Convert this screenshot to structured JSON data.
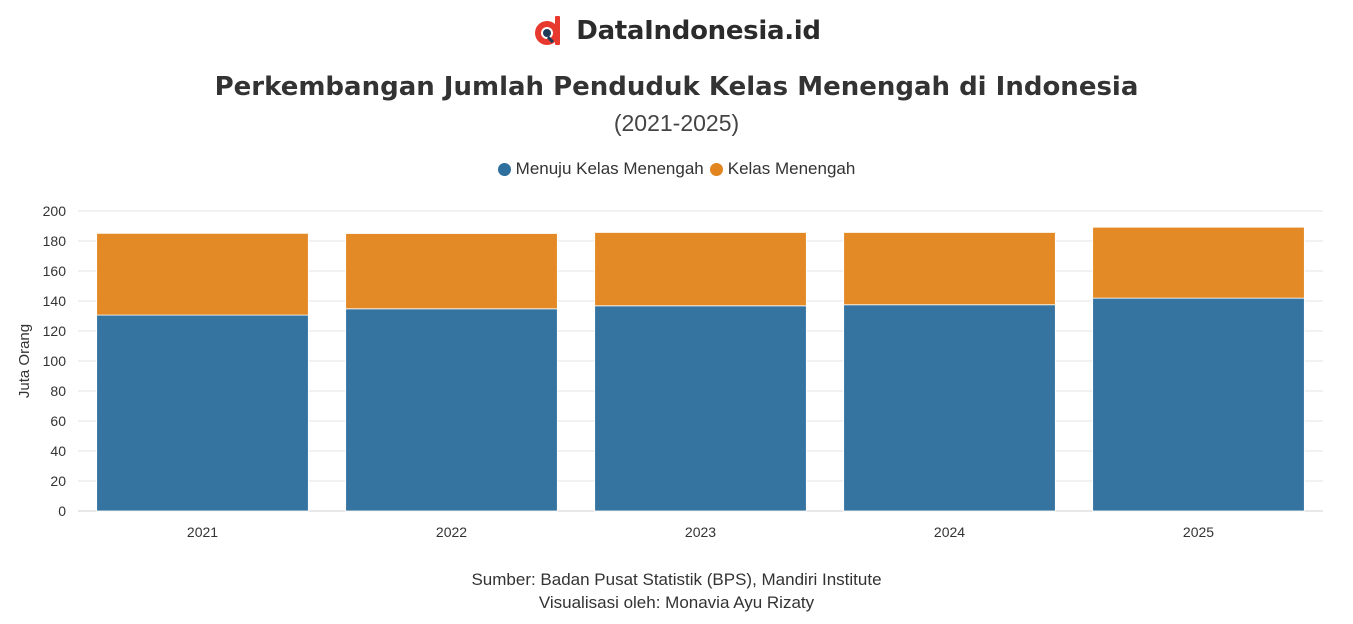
{
  "brand": {
    "name": "DataIndonesia.id",
    "logo_icon": "datain-logo-icon",
    "logo_colors": [
      "#e8392e",
      "#1f3b57"
    ]
  },
  "chart_data": {
    "type": "bar",
    "stacked": true,
    "title": "Perkembangan Jumlah Penduduk Kelas Menengah di Indonesia",
    "subtitle": "(2021-2025)",
    "categories": [
      "2021",
      "2022",
      "2023",
      "2024",
      "2025"
    ],
    "series": [
      {
        "name": "Menuju Kelas Menengah",
        "color": "#2e6f9e",
        "values": [
          130.6,
          134.8,
          136.8,
          137.5,
          141.9
        ]
      },
      {
        "name": "Kelas Menengah",
        "color": "#e2851e",
        "values": [
          54.5,
          50.2,
          48.9,
          48.2,
          47.3
        ]
      }
    ],
    "xlabel": "",
    "ylabel": "Juta Orang",
    "ylim": [
      0,
      200
    ],
    "yticks": [
      0,
      20,
      40,
      60,
      80,
      100,
      120,
      140,
      160,
      180,
      200
    ],
    "grid": true,
    "legend_position": "top-center"
  },
  "footer": {
    "source": "Sumber: Badan Pusat Statistik (BPS), Mandiri Institute",
    "credit": "Visualisasi oleh: Monavia Ayu Rizaty"
  }
}
